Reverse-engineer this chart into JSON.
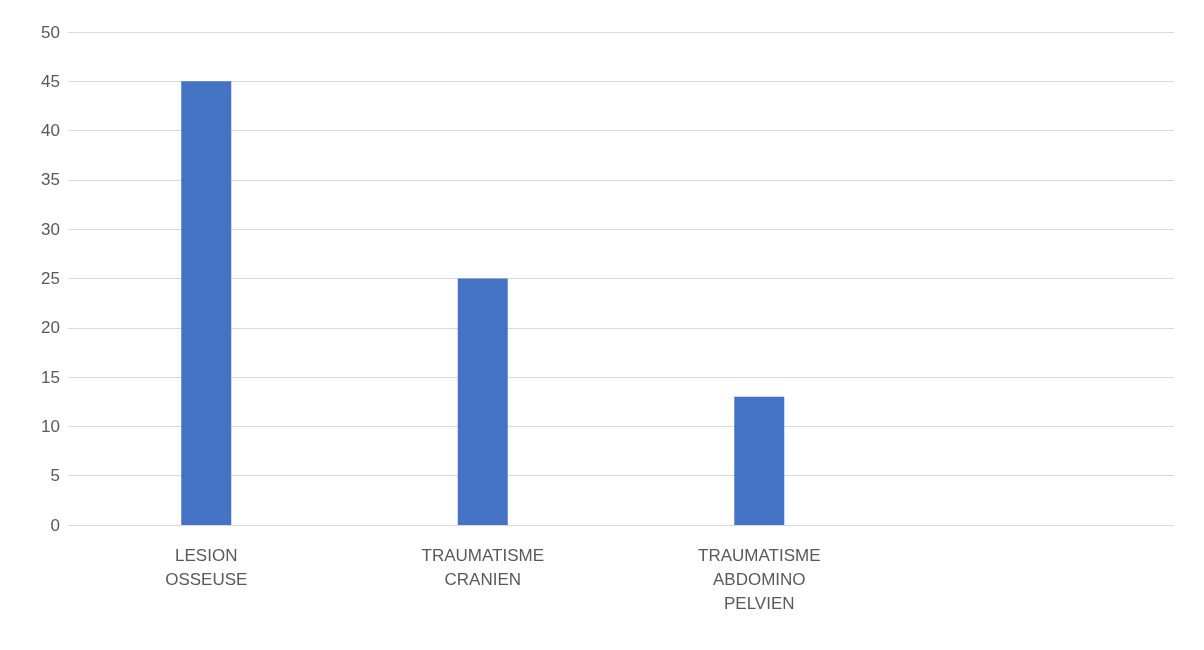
{
  "chart_data": {
    "type": "bar",
    "categories": [
      "LESION\nOSSEUSE",
      "TRAUMATISME\nCRANIEN",
      "TRAUMATISME\nABDOMINO\nPELVIEN",
      null
    ],
    "values": [
      45,
      25,
      13,
      null
    ],
    "color": "#4472c4",
    "ylim": [
      0,
      50
    ],
    "yticks": [
      0,
      5,
      10,
      15,
      20,
      25,
      30,
      35,
      40,
      45,
      50
    ],
    "grid": "y"
  }
}
